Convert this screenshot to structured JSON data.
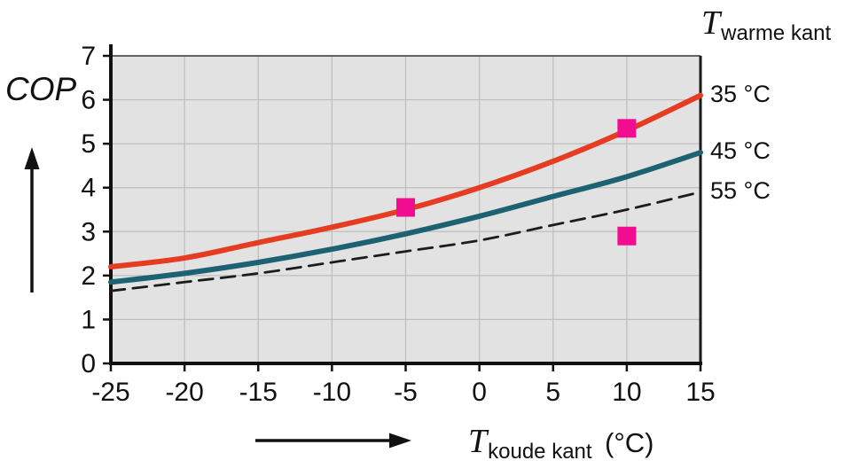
{
  "chart_data": {
    "type": "line",
    "title": "",
    "xlabel": "T koude kant (°C)",
    "ylabel": "COP",
    "legend_title": "T warme kant",
    "xlim": [
      -25,
      15
    ],
    "ylim": [
      0,
      7
    ],
    "x_ticks": [
      -25,
      -20,
      -15,
      -10,
      -5,
      0,
      5,
      10,
      15
    ],
    "y_ticks": [
      0,
      1,
      2,
      3,
      4,
      5,
      6,
      7
    ],
    "grid": true,
    "plot_background": "#e2e2e2",
    "grid_color": "#bdbdbd",
    "x": [
      -25,
      -20,
      -15,
      -10,
      -5,
      0,
      5,
      10,
      15
    ],
    "series": [
      {
        "name": "35 °C",
        "color": "#e63c22",
        "line_style": "solid",
        "values": [
          2.2,
          2.4,
          2.75,
          3.1,
          3.5,
          4.0,
          4.6,
          5.3,
          6.1
        ]
      },
      {
        "name": "45 °C",
        "color": "#1d6272",
        "line_style": "solid",
        "values": [
          1.85,
          2.05,
          2.3,
          2.6,
          2.95,
          3.35,
          3.8,
          4.25,
          4.8
        ]
      },
      {
        "name": "55 °C",
        "color": "#1c1c1c",
        "line_style": "dashed",
        "values": [
          1.65,
          1.85,
          2.05,
          2.3,
          2.55,
          2.8,
          3.15,
          3.5,
          3.9
        ]
      }
    ],
    "point_markers": {
      "shape": "square",
      "color": "#f20c8f",
      "points": [
        {
          "x": -5,
          "y": 3.55
        },
        {
          "x": 10,
          "y": 5.35
        },
        {
          "x": 10,
          "y": 2.9
        }
      ]
    }
  },
  "labels": {
    "y_title": "COP",
    "x_title_main": "T",
    "x_title_sub": "koude kant",
    "x_title_unit": "(°C)",
    "right_title_main": "T",
    "right_title_sub": "warme kant"
  }
}
